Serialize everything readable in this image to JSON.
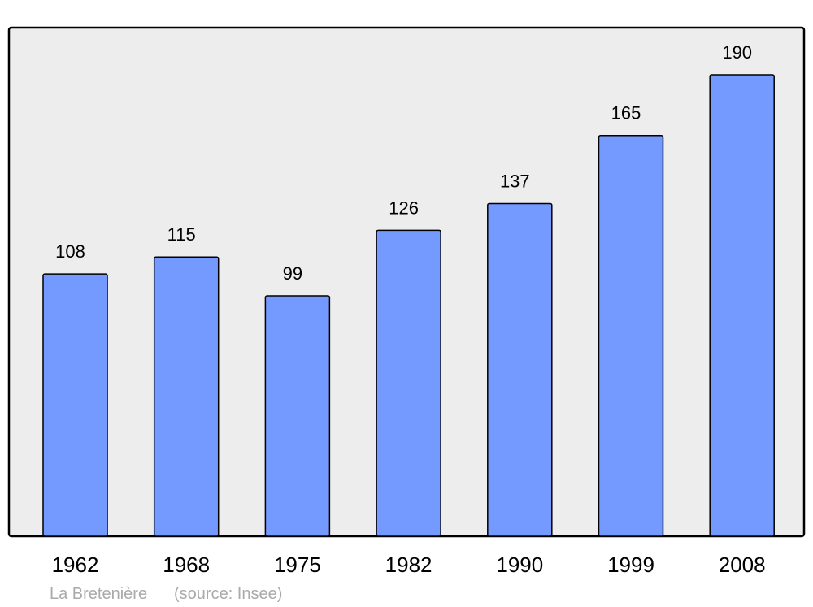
{
  "chart_data": {
    "type": "bar",
    "categories": [
      "1962",
      "1968",
      "1975",
      "1982",
      "1990",
      "1999",
      "2008"
    ],
    "values": [
      108,
      115,
      99,
      126,
      137,
      165,
      190
    ],
    "title": "",
    "xlabel": "",
    "ylabel": "",
    "ylim": [
      0,
      209.4
    ],
    "grid": false,
    "data_labels": true,
    "colors": {
      "bar": "#7499ff",
      "plot_background": "#ededed",
      "stroke": "#000000",
      "footer_text": "#aaaaaa"
    }
  },
  "footer": {
    "place": "La Bretenière",
    "source": "(source: Insee)"
  }
}
